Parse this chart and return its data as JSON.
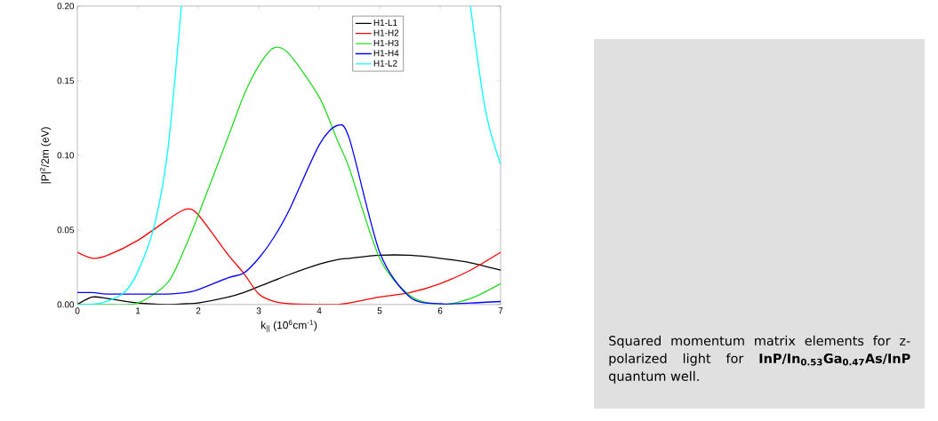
{
  "chart_data": [
    {
      "type": "line",
      "xlabel": "k$_{||}$ (10$^{6}$cm$^{-1}$)",
      "ylabel": "|P|$^{2}$/2m (eV)",
      "x": [
        0,
        0.25,
        0.5,
        1,
        1.5,
        1.8,
        2,
        2.5,
        2.75,
        3,
        3.25,
        3.5,
        4,
        4.3,
        4.5,
        5,
        5.5,
        6,
        6.5,
        7
      ],
      "series": [
        {
          "name": "H1-L1",
          "color": "#000000",
          "values": [
            0,
            0.005,
            0.004,
            0.001,
            0,
            0.0005,
            0.001,
            0.005,
            0.008,
            0.012,
            0.016,
            0.02,
            0.027,
            0.03,
            0.031,
            0.033,
            0.033,
            0.031,
            0.028,
            0.023
          ]
        },
        {
          "name": "H1-H2",
          "color": "#ff0000",
          "values": [
            0.035,
            0.031,
            0.033,
            0.043,
            0.057,
            0.064,
            0.06,
            0.033,
            0.021,
            0.007,
            0.002,
            0.0005,
            0,
            0,
            0.001,
            0.005,
            0.008,
            0.014,
            0.023,
            0.035
          ]
        },
        {
          "name": "H1-H3",
          "color": "#22dd22",
          "values": [
            0,
            0,
            0,
            0.001,
            0.015,
            0.04,
            0.06,
            0.113,
            0.14,
            0.16,
            0.172,
            0.168,
            0.139,
            0.11,
            0.091,
            0.031,
            0.006,
            0,
            0.004,
            0.014
          ]
        },
        {
          "name": "H1-H4",
          "color": "#0000ff",
          "values": [
            0.008,
            0.008,
            0.007,
            0.007,
            0.007,
            0.008,
            0.01,
            0.018,
            0.021,
            0.031,
            0.045,
            0.063,
            0.107,
            0.12,
            0.111,
            0.035,
            0.005,
            0.0005,
            0.001,
            0.002
          ]
        },
        {
          "name": "H1-L2",
          "color": "#00ffff",
          "x": [
            0,
            0.4,
            0.77,
            1.0,
            1.28,
            1.5,
            1.72,
            4,
            6.5,
            6.75,
            7
          ],
          "values": [
            0,
            0.001,
            0.008,
            0.022,
            0.054,
            0.105,
            0.2,
            null,
            0.2,
            0.13,
            0.094
          ]
        }
      ],
      "xlim": [
        0,
        7
      ],
      "ylim": [
        0,
        0.2
      ],
      "xticks": [
        0,
        1,
        2,
        3,
        4,
        5,
        6,
        7
      ],
      "yticks": [
        {
          "value": 0,
          "label": "0.00"
        },
        {
          "value": 0.05,
          "label": "0.05"
        },
        {
          "value": 0.1,
          "label": "0.10"
        },
        {
          "value": 0.15,
          "label": "0.15"
        },
        {
          "value": 0.2,
          "label": "0.20"
        }
      ],
      "legend": "top right",
      "grid": false
    },
    {
      "type": "other",
      "annotations": [
        "Squared momentum matrix elements for z-polarized light for **InP/In$_{0.53}$Ga$_{0.47}$As/InP** quantum well."
      ]
    }
  ]
}
